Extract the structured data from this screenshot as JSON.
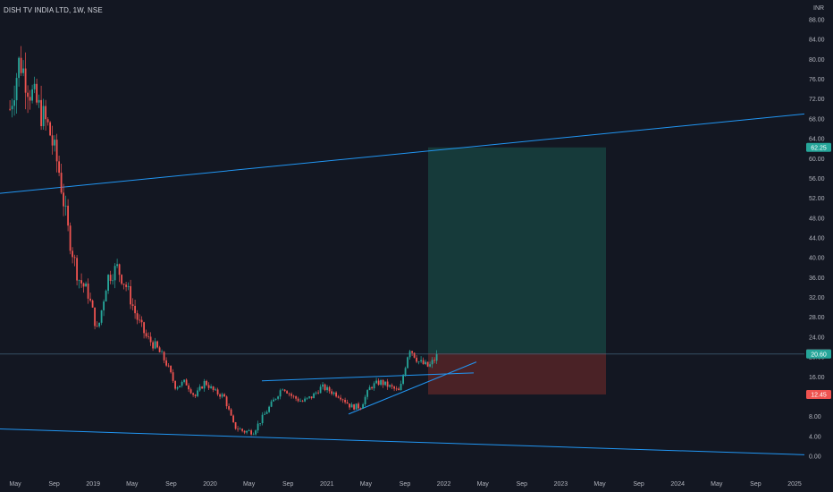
{
  "header": {
    "symbol_title": "DISH TV INDIA LTD, 1W, NSE",
    "currency": "INR"
  },
  "colors": {
    "background": "#131722",
    "up": "#26a69a",
    "down": "#ef5350",
    "trendline": "#2196f3",
    "target_zone": "#163a3a",
    "stop_zone": "#4a2226",
    "text": "#b2b5be"
  },
  "price_axis": {
    "ticks": [
      "88.00",
      "84.00",
      "80.00",
      "76.00",
      "72.00",
      "68.00",
      "64.00",
      "60.00",
      "56.00",
      "52.00",
      "48.00",
      "44.00",
      "40.00",
      "36.00",
      "32.00",
      "28.00",
      "24.00",
      "20.00",
      "16.00",
      "12.00",
      "8.00",
      "4.00",
      "0.00"
    ],
    "badges": [
      {
        "label": "62.25",
        "value": 62.25,
        "color": "#26a69a"
      },
      {
        "label": "20.75",
        "value": 20.75,
        "color": "#363a45"
      },
      {
        "label": "20.60",
        "value": 20.6,
        "color": "#26a69a"
      },
      {
        "label": "12.45",
        "value": 12.45,
        "color": "#ef5350"
      }
    ]
  },
  "time_axis": {
    "labels": [
      "May",
      "Sep",
      "2019",
      "May",
      "Sep",
      "2020",
      "May",
      "Sep",
      "2021",
      "May",
      "Sep",
      "2022",
      "May",
      "Sep",
      "2023",
      "May",
      "Sep",
      "2024",
      "May",
      "Sep",
      "2025"
    ]
  },
  "chart_data": {
    "type": "candlestick",
    "title": "DISH TV INDIA LTD, 1W, NSE",
    "y_range": [
      0,
      90
    ],
    "close_price": 20.6,
    "position_tool": {
      "entry": 20.75,
      "target": 62.25,
      "stop": 12.45
    },
    "price_path": [
      [
        "2018-04",
        70
      ],
      [
        "2018-05",
        80
      ],
      [
        "2018-06",
        74
      ],
      [
        "2018-07",
        70
      ],
      [
        "2018-08",
        66
      ],
      [
        "2018-09",
        58
      ],
      [
        "2018-10",
        45
      ],
      [
        "2018-11",
        36
      ],
      [
        "2018-12",
        33
      ],
      [
        "2019-01",
        25
      ],
      [
        "2019-02",
        36
      ],
      [
        "2019-03",
        38
      ],
      [
        "2019-04",
        34
      ],
      [
        "2019-05",
        28
      ],
      [
        "2019-06",
        24
      ],
      [
        "2019-07",
        22
      ],
      [
        "2019-08",
        19
      ],
      [
        "2019-09",
        14
      ],
      [
        "2019-10",
        15
      ],
      [
        "2019-11",
        12
      ],
      [
        "2019-12",
        15
      ],
      [
        "2020-01",
        13
      ],
      [
        "2020-02",
        12
      ],
      [
        "2020-03",
        6
      ],
      [
        "2020-04",
        5
      ],
      [
        "2020-05",
        5
      ],
      [
        "2020-06",
        8
      ],
      [
        "2020-07",
        11
      ],
      [
        "2020-08",
        14
      ],
      [
        "2020-09",
        12
      ],
      [
        "2020-10",
        11
      ],
      [
        "2020-11",
        12
      ],
      [
        "2020-12",
        14
      ],
      [
        "2021-01",
        13
      ],
      [
        "2021-02",
        12
      ],
      [
        "2021-03",
        10
      ],
      [
        "2021-04",
        10
      ],
      [
        "2021-05",
        14
      ],
      [
        "2021-06",
        15
      ],
      [
        "2021-07",
        14
      ],
      [
        "2021-08",
        13
      ],
      [
        "2021-09",
        22
      ],
      [
        "2021-10",
        19
      ],
      [
        "2021-11",
        18
      ],
      [
        "2021-12",
        20.6
      ]
    ]
  }
}
